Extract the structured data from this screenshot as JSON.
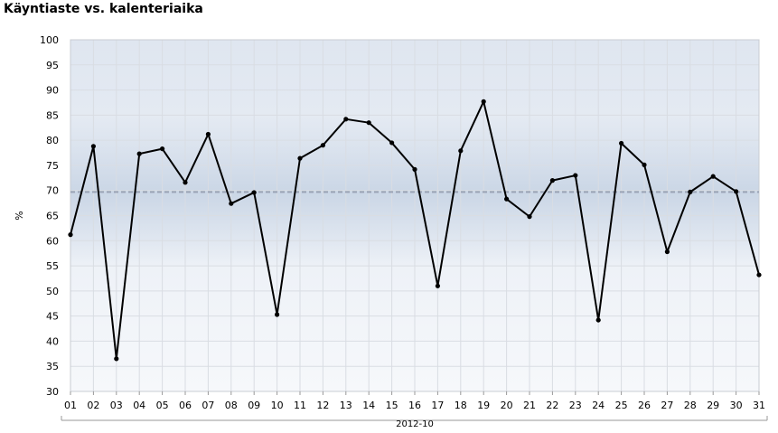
{
  "chart_data": {
    "type": "line",
    "title": "Käyntiaste vs. kalenteriaika",
    "xlabel": "",
    "ylabel": "%",
    "group_label": "2012-10",
    "categories": [
      "01",
      "02",
      "03",
      "04",
      "05",
      "06",
      "07",
      "08",
      "09",
      "10",
      "11",
      "12",
      "13",
      "14",
      "15",
      "16",
      "17",
      "18",
      "19",
      "20",
      "21",
      "22",
      "23",
      "24",
      "25",
      "26",
      "27",
      "28",
      "29",
      "30",
      "31"
    ],
    "series": [
      {
        "values": [
          61.2,
          78.8,
          36.5,
          77.3,
          78.3,
          71.6,
          81.2,
          67.4,
          69.6,
          45.3,
          76.4,
          79.0,
          84.2,
          83.5,
          79.5,
          74.2,
          51.0,
          77.9,
          87.7,
          68.3,
          64.8,
          72.0,
          73.0,
          44.2,
          79.4,
          75.1,
          57.8,
          69.7,
          72.8,
          69.8,
          53.2
        ]
      }
    ],
    "reference_line": 69.7,
    "ylim": [
      30,
      100
    ],
    "yticks": [
      30,
      35,
      40,
      45,
      50,
      55,
      60,
      65,
      70,
      75,
      80,
      85,
      90,
      95,
      100
    ],
    "grid": true,
    "legend": "none",
    "colors": {
      "line": "#000000",
      "marker": "#000000",
      "reference": "#9aa3b5",
      "band": "#c5d2e3",
      "background_top": "#dfe6f0",
      "background_bottom": "#f6f8fb",
      "grid": "#d9dde3"
    }
  }
}
